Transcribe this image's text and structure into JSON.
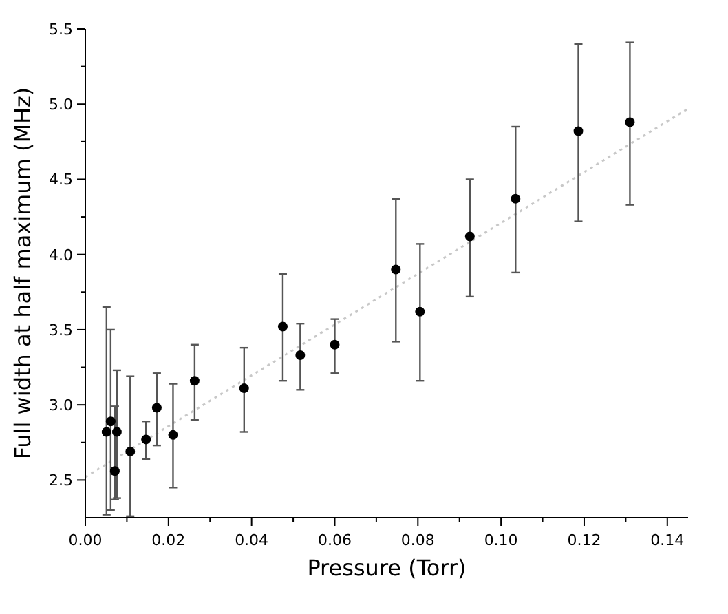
{
  "chart_data": {
    "type": "scatter",
    "xlabel": "Pressure (Torr)",
    "ylabel": "Full width at half maximum (MHz)",
    "xlim": [
      0,
      0.145
    ],
    "ylim": [
      2.25,
      5.5
    ],
    "xticks": [
      {
        "value": 0,
        "label": "0.00"
      },
      {
        "value": 0.01,
        "label": null
      },
      {
        "value": 0.02,
        "label": "0.02"
      },
      {
        "value": 0.03,
        "label": null
      },
      {
        "value": 0.04,
        "label": "0.04"
      },
      {
        "value": 0.05,
        "label": null
      },
      {
        "value": 0.06,
        "label": "0.06"
      },
      {
        "value": 0.07,
        "label": null
      },
      {
        "value": 0.08,
        "label": "0.08"
      },
      {
        "value": 0.09,
        "label": null
      },
      {
        "value": 0.1,
        "label": "0.10"
      },
      {
        "value": 0.11,
        "label": null
      },
      {
        "value": 0.12,
        "label": "0.12"
      },
      {
        "value": 0.13,
        "label": null
      },
      {
        "value": 0.14,
        "label": "0.14"
      }
    ],
    "yticks": [
      {
        "value": 2.5,
        "label": "2.5"
      },
      {
        "value": 2.75,
        "label": null
      },
      {
        "value": 3,
        "label": "3.0"
      },
      {
        "value": 3.25,
        "label": null
      },
      {
        "value": 3.5,
        "label": "3.5"
      },
      {
        "value": 3.75,
        "label": null
      },
      {
        "value": 4,
        "label": "4.0"
      },
      {
        "value": 4.25,
        "label": null
      },
      {
        "value": 4.5,
        "label": "4.5"
      },
      {
        "value": 4.75,
        "label": null
      },
      {
        "value": 5,
        "label": "5.0"
      },
      {
        "value": 5.25,
        "label": null
      },
      {
        "value": 5.5,
        "label": "5.5"
      }
    ],
    "grid": false,
    "marker": "circle",
    "series": [
      {
        "color": "#000000",
        "x": [
          0.0051,
          0.0061,
          0.0071,
          0.0076,
          0.0108,
          0.0146,
          0.0172,
          0.0211,
          0.0263,
          0.0382,
          0.0475,
          0.0517,
          0.06,
          0.0747,
          0.0805,
          0.0925,
          0.1035,
          0.1186,
          0.131
        ],
        "values": [
          2.82,
          2.89,
          2.56,
          2.82,
          2.69,
          2.77,
          2.98,
          2.8,
          3.16,
          3.11,
          3.52,
          3.33,
          3.4,
          3.9,
          3.62,
          4.12,
          4.37,
          4.82,
          4.88
        ],
        "errors": [
          [
            2.27,
            3.65
          ],
          [
            2.3,
            3.5
          ],
          [
            2.37,
            2.99
          ],
          [
            2.38,
            3.23
          ],
          [
            2.26,
            3.19
          ],
          [
            2.64,
            2.89
          ],
          [
            2.73,
            3.21
          ],
          [
            2.45,
            3.14
          ],
          [
            2.9,
            3.4
          ],
          [
            2.82,
            3.38
          ],
          [
            3.16,
            3.87
          ],
          [
            3.1,
            3.54
          ],
          [
            3.21,
            3.57
          ],
          [
            3.42,
            4.37
          ],
          [
            3.16,
            4.07
          ],
          [
            3.72,
            4.5
          ],
          [
            3.88,
            4.85
          ],
          [
            4.22,
            5.4
          ],
          [
            4.33,
            5.41
          ]
        ]
      },
      {
        "type": "line",
        "color": "#c8c8c8",
        "line_style": "dotted",
        "marker": "none",
        "x": [
          0,
          0.145
        ],
        "values": [
          2.52,
          4.97
        ]
      }
    ]
  }
}
